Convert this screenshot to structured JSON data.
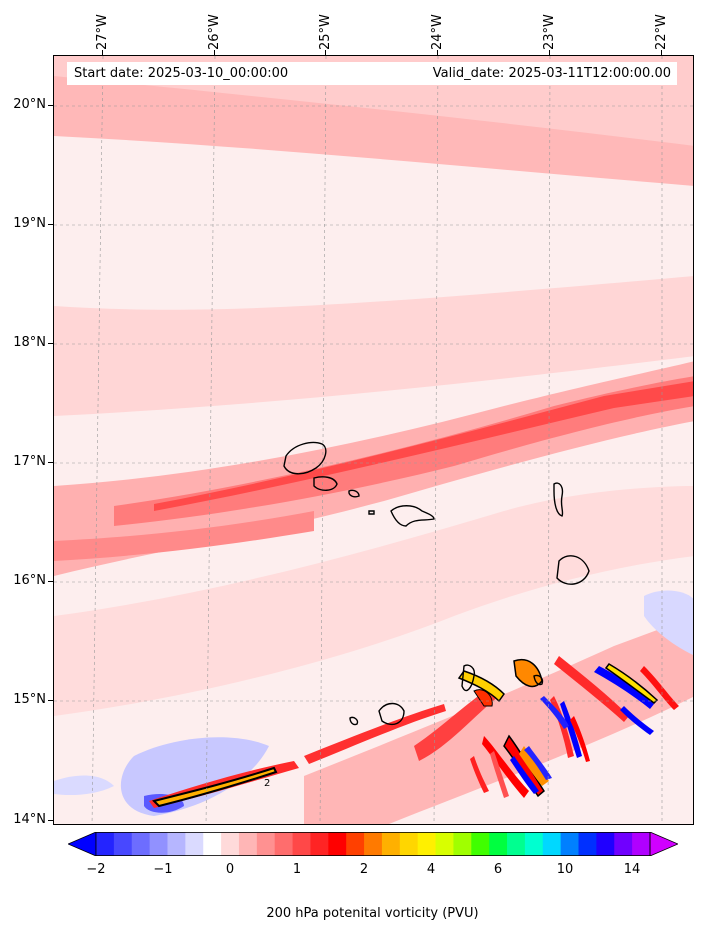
{
  "info": {
    "start_date": "Start date: 2025-03-10_00:00:00",
    "valid_date": "Valid_date: 2025-03-11T12:00:00.00"
  },
  "axes": {
    "latitude_labels": [
      "20°N",
      "19°N",
      "18°N",
      "17°N",
      "16°N",
      "15°N",
      "14°N"
    ],
    "longitude_labels": [
      "27°W",
      "26°W",
      "25°W",
      "24°W",
      "23°W",
      "22°W"
    ]
  },
  "colorbar": {
    "label": "200 hPa potenital vorticity (PVU)",
    "tick_labels": [
      "−2",
      "−1",
      "0",
      "1",
      "2",
      "4",
      "6",
      "10",
      "14"
    ],
    "colors": [
      "#0000ff",
      "#2424ff",
      "#4848ff",
      "#6d6dff",
      "#9191ff",
      "#b6b6ff",
      "#dadaff",
      "#ffffff",
      "#ffdada",
      "#ffb6b6",
      "#ff9191",
      "#ff6d6d",
      "#ff4848",
      "#ff2424",
      "#ff0000",
      "#ff4000",
      "#ff7a00",
      "#ffb000",
      "#ffd600",
      "#fff000",
      "#d8ff00",
      "#a0ff00",
      "#40ff00",
      "#00ff40",
      "#00ff90",
      "#00ffd0",
      "#00d8ff",
      "#0080ff",
      "#0030ff",
      "#2000ff",
      "#7000ff",
      "#b000ff",
      "#d000ff"
    ],
    "extend": "both"
  },
  "map_features": {
    "background_color": "#fdeeee",
    "contour_highlight_label": "2",
    "grid": "dashed"
  }
}
